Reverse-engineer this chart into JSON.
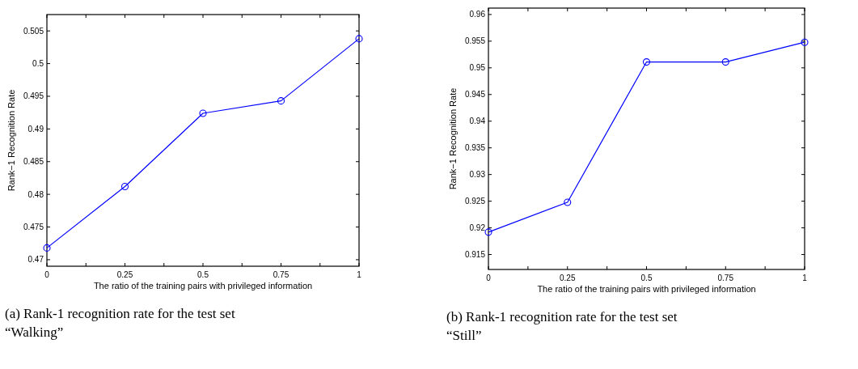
{
  "chart_data": [
    {
      "type": "line",
      "xlabel": "The ratio of the training pairs with privileged information",
      "ylabel": "Rank−1 Recognition Rate",
      "x": [
        0,
        0.25,
        0.5,
        0.75,
        1
      ],
      "series": [
        {
          "color": "#0000ff",
          "values": [
            0.4718,
            0.4812,
            0.4924,
            0.4943,
            0.5038
          ]
        }
      ],
      "xlim": [
        0,
        1
      ],
      "xticks": [
        0,
        {
          "value": 0.125,
          "label": null
        },
        0.25,
        {
          "value": 0.375,
          "label": null
        },
        0.5,
        {
          "value": 0.625,
          "label": null
        },
        0.75,
        {
          "value": 0.875,
          "label": null
        },
        1
      ],
      "ylim": [
        0.469,
        0.5075
      ],
      "yticks": [
        0.47,
        0.475,
        0.48,
        0.485,
        0.49,
        0.495,
        0.5,
        0.505
      ],
      "marker": "circle",
      "line_style": "solid",
      "grid": false,
      "annotations": [
        "(a) Rank-1 recognition rate for the test set “Walking”"
      ]
    },
    {
      "type": "line",
      "xlabel": "The ratio of the training pairs with privileged information",
      "ylabel": "Rank−1 Recognition Rate",
      "x": [
        0,
        0.25,
        0.5,
        0.75,
        1
      ],
      "series": [
        {
          "color": "#0000ff",
          "values": [
            0.9192,
            0.9248,
            0.9511,
            0.9511,
            0.9548
          ]
        }
      ],
      "xlim": [
        0,
        1
      ],
      "xticks": [
        0,
        {
          "value": 0.125,
          "label": null
        },
        0.25,
        {
          "value": 0.375,
          "label": null
        },
        0.5,
        {
          "value": 0.625,
          "label": null
        },
        0.75,
        {
          "value": 0.875,
          "label": null
        },
        1
      ],
      "ylim": [
        0.9122,
        0.9612
      ],
      "yticks": [
        0.915,
        0.92,
        0.925,
        0.93,
        0.935,
        0.94,
        0.945,
        0.95,
        0.955,
        0.96
      ],
      "marker": "circle",
      "line_style": "solid",
      "grid": false,
      "annotations": [
        "(b) Rank-1 recognition rate for the test set “Still”"
      ]
    }
  ]
}
